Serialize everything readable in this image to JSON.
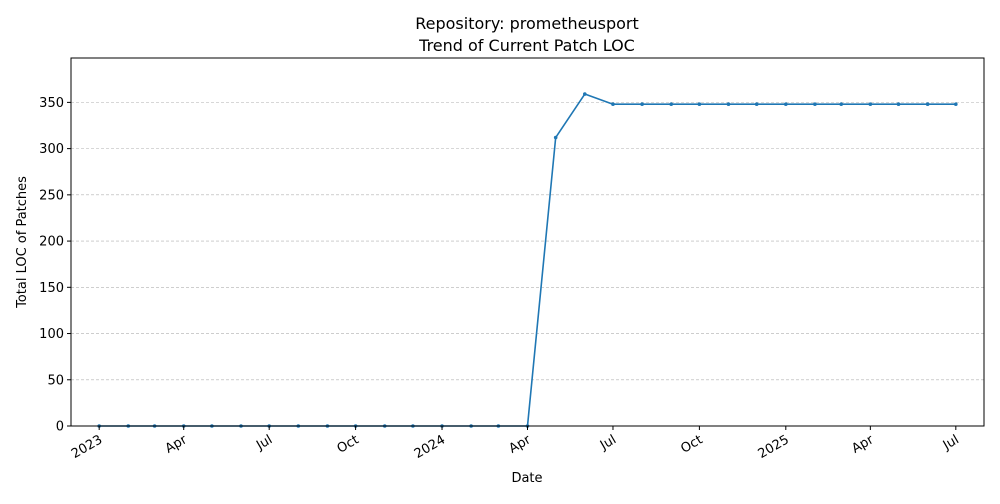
{
  "chart_data": {
    "type": "line",
    "title_lines": [
      "Repository: prometheusport",
      "Trend of Current Patch LOC"
    ],
    "xlabel": "Date",
    "ylabel": "Total LOC of Patches",
    "ylim": [
      0,
      398
    ],
    "xlim": [
      "2022-12-02",
      "2025-07-31"
    ],
    "grid": {
      "y": true,
      "x": false
    },
    "color": "#1f77b4",
    "x_ticks": [
      {
        "date": "2023-01-01",
        "label": "2023"
      },
      {
        "date": "2023-04-01",
        "label": "Apr"
      },
      {
        "date": "2023-07-01",
        "label": "Jul"
      },
      {
        "date": "2023-10-01",
        "label": "Oct"
      },
      {
        "date": "2024-01-01",
        "label": "2024"
      },
      {
        "date": "2024-04-01",
        "label": "Apr"
      },
      {
        "date": "2024-07-01",
        "label": "Jul"
      },
      {
        "date": "2024-10-01",
        "label": "Oct"
      },
      {
        "date": "2025-01-01",
        "label": "2025"
      },
      {
        "date": "2025-04-01",
        "label": "Apr"
      },
      {
        "date": "2025-07-01",
        "label": "Jul"
      }
    ],
    "y_ticks": [
      0,
      50,
      100,
      150,
      200,
      250,
      300,
      350
    ],
    "series": [
      {
        "x": [
          "2023-01-01",
          "2023-02-01",
          "2023-03-01",
          "2023-04-01",
          "2023-05-01",
          "2023-06-01",
          "2023-07-01",
          "2023-08-01",
          "2023-09-01",
          "2023-10-01",
          "2023-11-01",
          "2023-12-01",
          "2024-01-01",
          "2024-02-01",
          "2024-03-01",
          "2024-04-01",
          "2024-05-01",
          "2024-06-01",
          "2024-07-01",
          "2024-08-01",
          "2024-09-01",
          "2024-10-01",
          "2024-11-01",
          "2024-12-01",
          "2025-01-01",
          "2025-02-01",
          "2025-03-01",
          "2025-04-01",
          "2025-05-01",
          "2025-06-01",
          "2025-07-01"
        ],
        "values": [
          0,
          0,
          0,
          0,
          0,
          0,
          0,
          0,
          0,
          0,
          0,
          0,
          0,
          0,
          0,
          0,
          312,
          359,
          348,
          348,
          348,
          348,
          348,
          348,
          348,
          348,
          348,
          348,
          348,
          348,
          348
        ]
      }
    ]
  }
}
